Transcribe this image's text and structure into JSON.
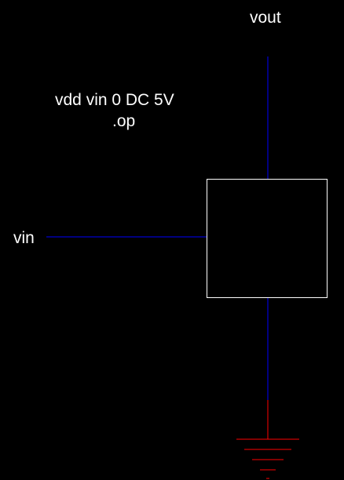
{
  "nets": {
    "vout": "vout",
    "vin": "vin"
  },
  "spice_directive": {
    "line1": "vdd vin 0 DC 5V",
    "line2": ".op"
  },
  "colors": {
    "background": "#000000",
    "wire": "#0000ff",
    "component_outline": "#ffffff",
    "ground": "#ff0000",
    "text": "#ffffff"
  },
  "symbols": {
    "component": "block-component",
    "ground": "ground-icon"
  }
}
